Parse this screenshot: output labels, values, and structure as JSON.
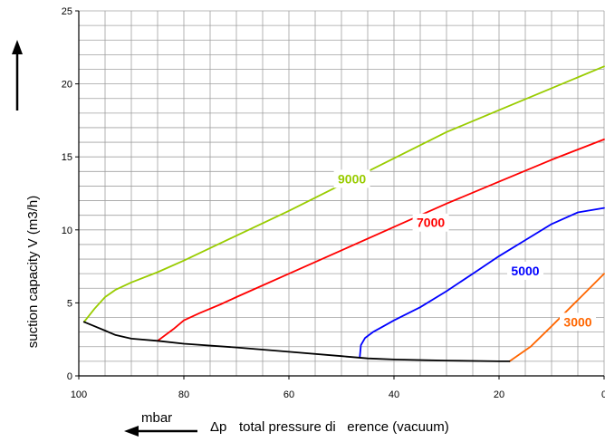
{
  "chart_data": {
    "type": "line",
    "title": "",
    "ylabel": "suction capacity V (m3/h)",
    "xlabel": "total pressure di   erence (vacuum)",
    "xlabel_symbol": "Δp",
    "xunit": "mbar",
    "xlim": [
      100,
      0
    ],
    "ylim": [
      0,
      25
    ],
    "x_ticks": [
      100,
      80,
      60,
      40,
      20,
      0
    ],
    "x_tick_labels": [
      "100",
      "80",
      "60",
      "40",
      "20",
      "0"
    ],
    "y_ticks": [
      0,
      5,
      10,
      15,
      20,
      25
    ],
    "y_tick_labels": [
      "0",
      "5",
      "10",
      "15",
      "20",
      "25"
    ],
    "grid": true,
    "series": [
      {
        "name": "9000",
        "color": "#99cc00",
        "points": [
          [
            99,
            3.7
          ],
          [
            97,
            4.6
          ],
          [
            95,
            5.4
          ],
          [
            93,
            5.9
          ],
          [
            90,
            6.4
          ],
          [
            85,
            7.1
          ],
          [
            80,
            7.9
          ],
          [
            70,
            9.6
          ],
          [
            60,
            11.3
          ],
          [
            50,
            13.1
          ],
          [
            40,
            14.9
          ],
          [
            30,
            16.7
          ],
          [
            20,
            18.2
          ],
          [
            10,
            19.7
          ],
          [
            0,
            21.2
          ]
        ]
      },
      {
        "name": "7000",
        "color": "#ff0000",
        "points": [
          [
            85,
            2.4
          ],
          [
            82,
            3.2
          ],
          [
            80,
            3.8
          ],
          [
            77,
            4.3
          ],
          [
            73,
            4.9
          ],
          [
            70,
            5.4
          ],
          [
            60,
            7.0
          ],
          [
            50,
            8.6
          ],
          [
            40,
            10.2
          ],
          [
            30,
            11.8
          ],
          [
            20,
            13.3
          ],
          [
            10,
            14.8
          ],
          [
            5,
            15.5
          ],
          [
            0,
            16.2
          ]
        ]
      },
      {
        "name": "5000",
        "color": "#0000ff",
        "points": [
          [
            46.5,
            1.3
          ],
          [
            46.3,
            2.1
          ],
          [
            45.5,
            2.6
          ],
          [
            44,
            3.0
          ],
          [
            42,
            3.4
          ],
          [
            40,
            3.8
          ],
          [
            35,
            4.7
          ],
          [
            30,
            5.8
          ],
          [
            25,
            7.0
          ],
          [
            20,
            8.2
          ],
          [
            15,
            9.3
          ],
          [
            10,
            10.4
          ],
          [
            5,
            11.2
          ],
          [
            0,
            11.5
          ]
        ]
      },
      {
        "name": "3000",
        "color": "#ff6600",
        "points": [
          [
            18,
            1.0
          ],
          [
            14,
            2.0
          ],
          [
            10,
            3.4
          ],
          [
            5,
            5.2
          ],
          [
            0,
            7.0
          ]
        ]
      },
      {
        "name": "",
        "color": "#000000",
        "points": [
          [
            99,
            3.7
          ],
          [
            97,
            3.4
          ],
          [
            95,
            3.1
          ],
          [
            93,
            2.8
          ],
          [
            90,
            2.55
          ],
          [
            85,
            2.4
          ],
          [
            80,
            2.2
          ],
          [
            70,
            1.95
          ],
          [
            60,
            1.65
          ],
          [
            50,
            1.35
          ],
          [
            45,
            1.2
          ],
          [
            40,
            1.12
          ],
          [
            30,
            1.05
          ],
          [
            20,
            1.0
          ],
          [
            18,
            1.0
          ]
        ]
      }
    ],
    "series_label_positions": [
      {
        "name": "9000",
        "x": 48,
        "y": 13.5
      },
      {
        "name": "7000",
        "x": 33,
        "y": 10.5
      },
      {
        "name": "5000",
        "x": 15,
        "y": 7.2
      },
      {
        "name": "3000",
        "x": 5,
        "y": 3.7
      }
    ]
  }
}
